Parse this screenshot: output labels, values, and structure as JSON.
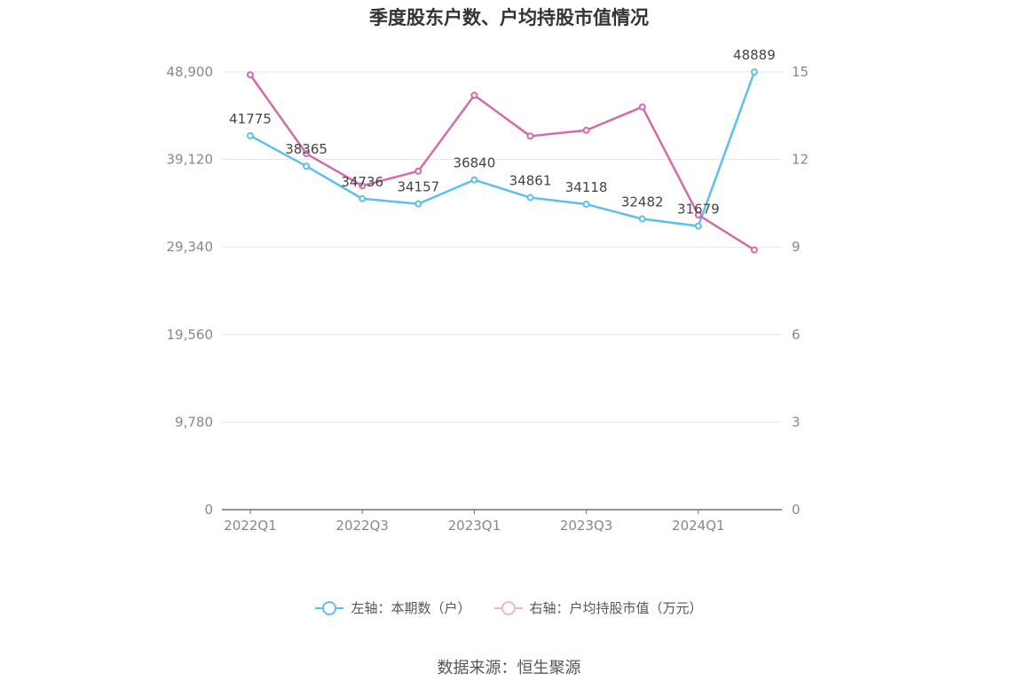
{
  "chart_data": {
    "type": "line",
    "title": "季度股东户数、户均持股市值情况",
    "categories": [
      "2022Q1",
      "2022Q2",
      "2022Q3",
      "2022Q4",
      "2023Q1",
      "2023Q2",
      "2023Q3",
      "2023Q4",
      "2024Q1",
      "2024Q2"
    ],
    "x_tick_labels": [
      "2022Q1",
      "2022Q3",
      "2023Q1",
      "2023Q3",
      "2024Q1"
    ],
    "left_axis": {
      "ticks": [
        "0",
        "9,780",
        "19,560",
        "29,340",
        "39,120",
        "48,900"
      ],
      "ylim": [
        0,
        48900
      ]
    },
    "right_axis": {
      "ticks": [
        "0",
        "3",
        "6",
        "9",
        "12",
        "15"
      ],
      "ylim": [
        0,
        15
      ]
    },
    "series": [
      {
        "name": "左轴：本期数（户）",
        "axis": "left",
        "color": "#5bc0eb",
        "values": [
          41775,
          38365,
          34736,
          34157,
          36840,
          34861,
          34118,
          32482,
          31679,
          48889
        ],
        "labels": [
          "41775",
          "38365",
          "34736",
          "34157",
          "36840",
          "34861",
          "34118",
          "32482",
          "31679",
          "48889"
        ]
      },
      {
        "name": "右轴：户均持股市值（万元）",
        "axis": "right",
        "color": "#d36aa9",
        "values": [
          14.9,
          12.2,
          11.1,
          11.6,
          14.2,
          12.8,
          13.0,
          13.8,
          10.1,
          8.9
        ]
      }
    ],
    "legend": "bottom-center",
    "grid": true
  },
  "legend_items": [
    {
      "label": "左轴：本期数（户）",
      "color": "#5bc0eb"
    },
    {
      "label": "右轴：户均持股市值（万元）",
      "color": "#d36aa9"
    }
  ],
  "source_text": "数据来源：恒生聚源"
}
